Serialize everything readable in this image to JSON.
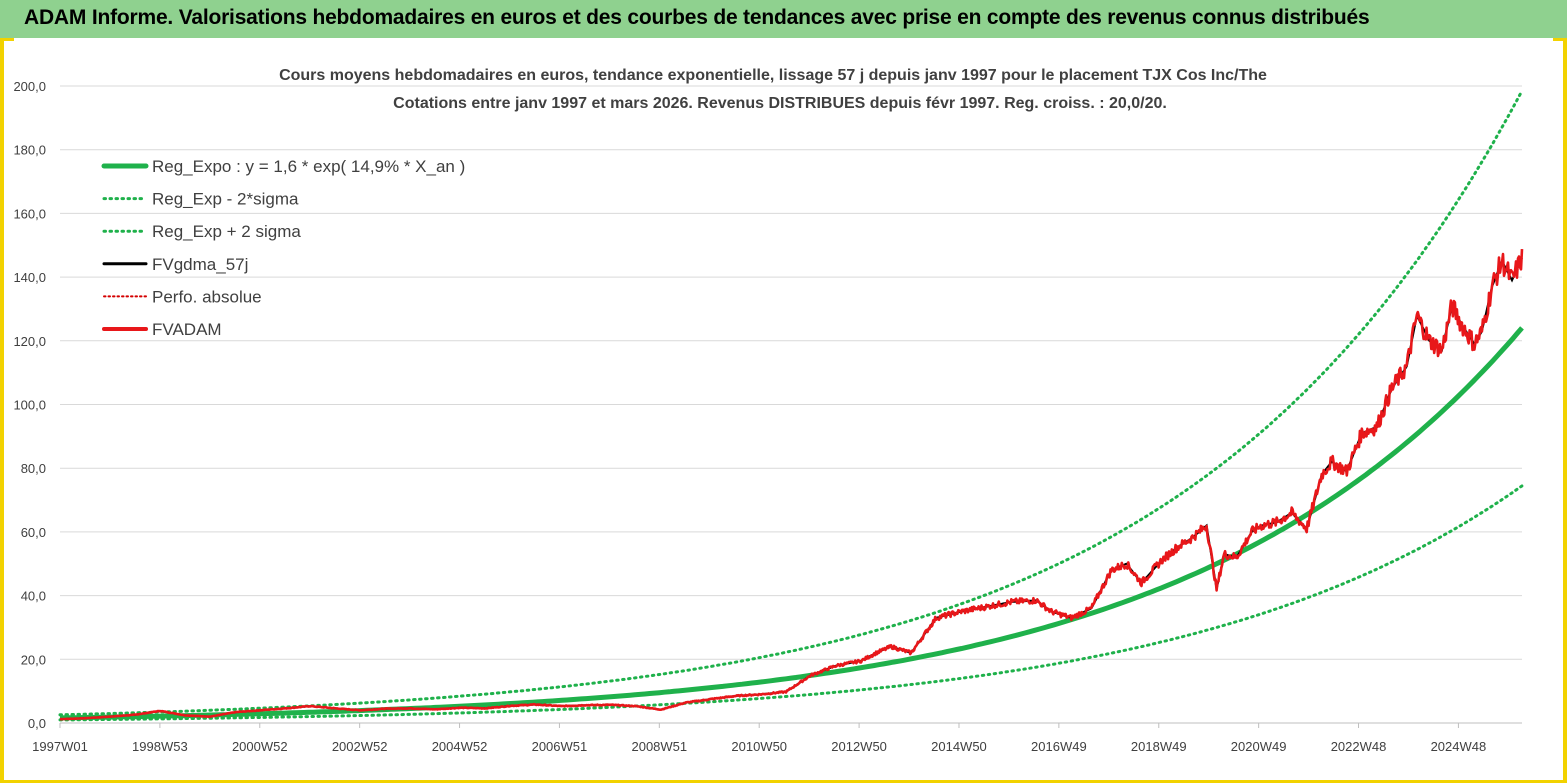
{
  "banner": {
    "title": "ADAM Informe. Valorisations hebdomadaires en euros et des courbes de tendances avec prise en compte des revenus connus distribués"
  },
  "colors": {
    "banner_bg": "#8fd18f",
    "frame": "#f2d200",
    "trend": "#1fb14b",
    "band": "#1fb14b",
    "gdma": "#000000",
    "perfo": "#d40000",
    "fvadam": "#e8171a"
  },
  "chart_data": {
    "type": "line",
    "title": [
      "Cours moyens hebdomadaires en euros, tendance exponentielle, lissage 57 j depuis janv 1997 pour le placement TJX Cos Inc/The",
      "Cotations entre janv 1997 et mars 2026. Revenus DISTRIBUES depuis févr 1997. Reg. croiss. : 20,0/20."
    ],
    "x_tick_labels": [
      "1997W01",
      "1998W53",
      "2000W52",
      "2002W52",
      "2004W52",
      "2006W51",
      "2008W51",
      "2010W50",
      "2012W50",
      "2014W50",
      "2016W49",
      "2018W49",
      "2020W49",
      "2022W48",
      "2024W48"
    ],
    "x_range_years": [
      1997.0,
      2026.2
    ],
    "y_tick_labels": [
      "0,0",
      "20,0",
      "40,0",
      "60,0",
      "80,0",
      "100,0",
      "120,0",
      "140,0",
      "160,0",
      "180,0",
      "200,0"
    ],
    "ylim": [
      0,
      200
    ],
    "grid": "horizontal",
    "legend_position": "top-left",
    "trend": {
      "name": "Reg_Expo : y = 1,6 * exp( 14,9% *  X_an )",
      "a": 1.6,
      "rate": 0.149,
      "start_year": 1997.0
    },
    "band_factors": [
      0.6,
      1.6
    ],
    "series": [
      {
        "name": "Reg_Expo : y = 1,6 * exp( 14,9% *  X_an )",
        "style": "solid-thick",
        "color": "#1fb14b"
      },
      {
        "name": "Reg_Exp - 2*sigma",
        "style": "dotted",
        "color": "#1fb14b"
      },
      {
        "name": "Reg_Exp + 2 sigma",
        "style": "dotted",
        "color": "#1fb14b"
      },
      {
        "name": "FVgdma_57j",
        "style": "solid",
        "color": "#000000"
      },
      {
        "name": "Perfo. absolue",
        "style": "dotted-thin",
        "color": "#d40000"
      },
      {
        "name": "FVADAM",
        "style": "solid-thick",
        "color": "#e8171a",
        "x": [
          1997.0,
          1997.5,
          1998.0,
          1998.5,
          1999.0,
          1999.5,
          2000.0,
          2000.5,
          2001.0,
          2001.5,
          2002.0,
          2002.5,
          2003.0,
          2003.5,
          2004.0,
          2004.5,
          2005.0,
          2005.5,
          2006.0,
          2006.5,
          2007.0,
          2007.5,
          2008.0,
          2008.5,
          2009.0,
          2009.5,
          2010.0,
          2010.5,
          2011.0,
          2011.5,
          2012.0,
          2012.5,
          2013.0,
          2013.3,
          2013.6,
          2014.0,
          2014.5,
          2015.0,
          2015.5,
          2016.0,
          2016.5,
          2016.8,
          2017.2,
          2017.6,
          2018.0,
          2018.3,
          2018.6,
          2019.0,
          2019.3,
          2019.6,
          2019.9,
          2020.1,
          2020.25,
          2020.5,
          2020.8,
          2021.0,
          2021.3,
          2021.6,
          2021.9,
          2022.2,
          2022.4,
          2022.7,
          2023.0,
          2023.3,
          2023.6,
          2023.9,
          2024.1,
          2024.35,
          2024.6,
          2024.8,
          2025.0,
          2025.25,
          2025.4,
          2025.6,
          2025.8,
          2026.0,
          2026.2
        ],
        "values": [
          1.2,
          1.5,
          2.0,
          2.6,
          3.8,
          2.4,
          2.0,
          3.4,
          4.0,
          4.6,
          5.3,
          4.6,
          4.0,
          4.5,
          4.6,
          4.3,
          4.8,
          4.6,
          5.4,
          5.8,
          5.3,
          5.6,
          5.7,
          5.3,
          4.2,
          6.4,
          7.5,
          8.5,
          9.0,
          9.8,
          15.0,
          18.0,
          19.5,
          22.0,
          24.0,
          22.0,
          33.0,
          35.0,
          36.5,
          38.0,
          38.5,
          35.0,
          33.0,
          36.0,
          48.0,
          50.0,
          44.0,
          51.0,
          55.0,
          58.0,
          62.0,
          42.0,
          53.0,
          52.0,
          60.0,
          62.0,
          63.0,
          66.0,
          61.0,
          78.0,
          82.0,
          79.0,
          91.0,
          93.0,
          105.0,
          112.0,
          128.0,
          120.0,
          117.0,
          131.0,
          125.0,
          119.0,
          123.0,
          137.0,
          145.0,
          139.0,
          146.0
        ]
      }
    ]
  }
}
